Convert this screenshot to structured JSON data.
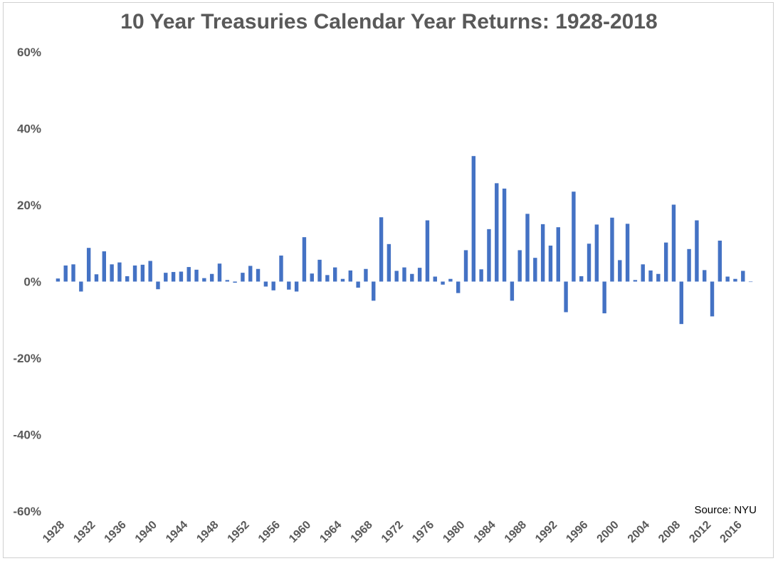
{
  "chart_data": {
    "type": "bar",
    "title": "10 Year Treasuries Calendar Year Returns: 1928-2018",
    "source_note": "Source: NYU",
    "xlabel": "",
    "ylabel": "",
    "ylim": [
      -60,
      60
    ],
    "y_ticks": [
      60,
      40,
      20,
      0,
      -20,
      -40,
      -60
    ],
    "y_tick_labels": [
      "60%",
      "40%",
      "20%",
      "0%",
      "-20%",
      "-40%",
      "-60%"
    ],
    "x_tick_labels": [
      "1928",
      "1932",
      "1936",
      "1940",
      "1944",
      "1948",
      "1952",
      "1956",
      "1960",
      "1964",
      "1968",
      "1972",
      "1976",
      "1980",
      "1984",
      "1988",
      "1992",
      "1996",
      "2000",
      "2004",
      "2008",
      "2012",
      "2016"
    ],
    "grid": false,
    "legend": "none",
    "bar_color": "#4472c4",
    "categories": [
      1928,
      1929,
      1930,
      1931,
      1932,
      1933,
      1934,
      1935,
      1936,
      1937,
      1938,
      1939,
      1940,
      1941,
      1942,
      1943,
      1944,
      1945,
      1946,
      1947,
      1948,
      1949,
      1950,
      1951,
      1952,
      1953,
      1954,
      1955,
      1956,
      1957,
      1958,
      1959,
      1960,
      1961,
      1962,
      1963,
      1964,
      1965,
      1966,
      1967,
      1968,
      1969,
      1970,
      1971,
      1972,
      1973,
      1974,
      1975,
      1976,
      1977,
      1978,
      1979,
      1980,
      1981,
      1982,
      1983,
      1984,
      1985,
      1986,
      1987,
      1988,
      1989,
      1990,
      1991,
      1992,
      1993,
      1994,
      1995,
      1996,
      1997,
      1998,
      1999,
      2000,
      2001,
      2002,
      2003,
      2004,
      2005,
      2006,
      2007,
      2008,
      2009,
      2010,
      2011,
      2012,
      2013,
      2014,
      2015,
      2016,
      2017,
      2018
    ],
    "values": [
      0.8,
      4.2,
      4.5,
      -2.6,
      8.8,
      1.9,
      7.9,
      4.5,
      5.0,
      1.4,
      4.2,
      4.4,
      5.4,
      -2.0,
      2.3,
      2.5,
      2.6,
      3.8,
      3.1,
      0.9,
      2.0,
      4.7,
      0.4,
      -0.3,
      2.3,
      4.1,
      3.3,
      -1.3,
      -2.3,
      6.8,
      -2.1,
      -2.6,
      11.6,
      2.1,
      5.7,
      1.7,
      3.7,
      0.7,
      2.9,
      -1.6,
      3.3,
      -5.0,
      16.8,
      9.8,
      2.8,
      3.7,
      2.0,
      3.6,
      16.0,
      1.3,
      -0.8,
      0.7,
      -3.0,
      8.2,
      32.8,
      3.2,
      13.7,
      25.7,
      24.3,
      -5.0,
      8.2,
      17.7,
      6.2,
      15.0,
      9.4,
      14.2,
      -8.0,
      23.5,
      1.4,
      9.9,
      14.9,
      -8.3,
      16.7,
      5.6,
      15.1,
      0.4,
      4.5,
      2.9,
      2.0,
      10.2,
      20.1,
      -11.1,
      8.5,
      16.0,
      3.0,
      -9.1,
      10.7,
      1.3,
      0.7,
      2.8,
      -0.0
    ]
  }
}
